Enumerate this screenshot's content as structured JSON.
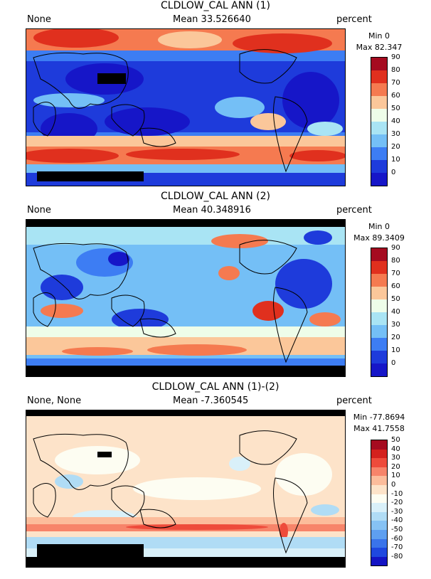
{
  "panels": [
    {
      "title": "CLDLOW_CAL ANN (1)",
      "left": "None",
      "mean": "Mean 33.526640",
      "units": "percent",
      "min": "Min 0",
      "max": "Max 82.347",
      "levels": [
        "90",
        "80",
        "70",
        "60",
        "50",
        "40",
        "30",
        "20",
        "10",
        "0"
      ],
      "colors": [
        "#a50b20",
        "#e0301e",
        "#f57a50",
        "#fbc79a",
        "#eefde9",
        "#a9e4f4",
        "#74bff6",
        "#3d7df3",
        "#1e3bdb",
        "#1616c8"
      ]
    },
    {
      "title": "CLDLOW_CAL ANN (2)",
      "left": "None",
      "mean": "Mean 40.348916",
      "units": "percent",
      "min": "Min 0",
      "max": "Max 89.3409",
      "levels": [
        "90",
        "80",
        "70",
        "60",
        "50",
        "40",
        "30",
        "20",
        "10",
        "0"
      ],
      "colors": [
        "#a50b20",
        "#e0301e",
        "#f57a50",
        "#fbc79a",
        "#eefde9",
        "#a9e4f4",
        "#74bff6",
        "#3d7df3",
        "#1e3bdb",
        "#1616c8"
      ]
    },
    {
      "title": "CLDLOW_CAL ANN (1)-(2)",
      "left": "None, None",
      "mean": "Mean -7.360545",
      "units": "percent",
      "min": "Min -77.8694",
      "max": "Max 41.7558",
      "levels": [
        "50",
        "40",
        "30",
        "20",
        "10",
        "0",
        "-10",
        "-20",
        "-30",
        "-40",
        "-50",
        "-60",
        "-70",
        "-80"
      ],
      "colors": [
        "#a50b20",
        "#d4211d",
        "#ee4b3b",
        "#f7846a",
        "#fcbc9b",
        "#fde3c9",
        "#fdfdf2",
        "#d9f0f9",
        "#b0dcf5",
        "#86c2f4",
        "#5e9ff0",
        "#3a74ea",
        "#1f48df",
        "#1414c4"
      ]
    }
  ]
}
